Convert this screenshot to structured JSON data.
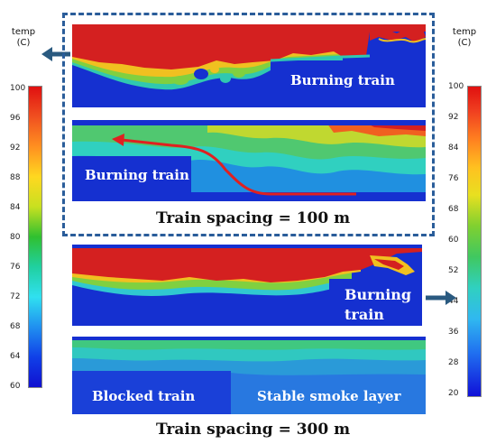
{
  "legend_left": {
    "title_line1": "temp",
    "title_line2": "(C)",
    "ticks": [
      "100",
      "96",
      "92",
      "88",
      "84",
      "80",
      "76",
      "72",
      "68",
      "64",
      "60"
    ]
  },
  "legend_right": {
    "title_line1": "temp",
    "title_line2": "(C)",
    "ticks": [
      "100",
      "92",
      "84",
      "76",
      "68",
      "60",
      "52",
      "44",
      "36",
      "28",
      "20"
    ]
  },
  "panels": {
    "p1_label": "Burning train",
    "p2_label": "Burning train",
    "p3_label_line1": "Burning",
    "p3_label_line2": "train",
    "p4_label_left": "Blocked train",
    "p4_label_right": "Stable smoke layer"
  },
  "captions": {
    "top": "Train spacing = 100 m",
    "bottom": "Train spacing = 300 m"
  },
  "colors": {
    "dash_border": "#2a5d9a",
    "arrow": "#2a5a80",
    "flow_arrow": "#e02020",
    "hot": "#d42020",
    "cold": "#1530d0"
  }
}
